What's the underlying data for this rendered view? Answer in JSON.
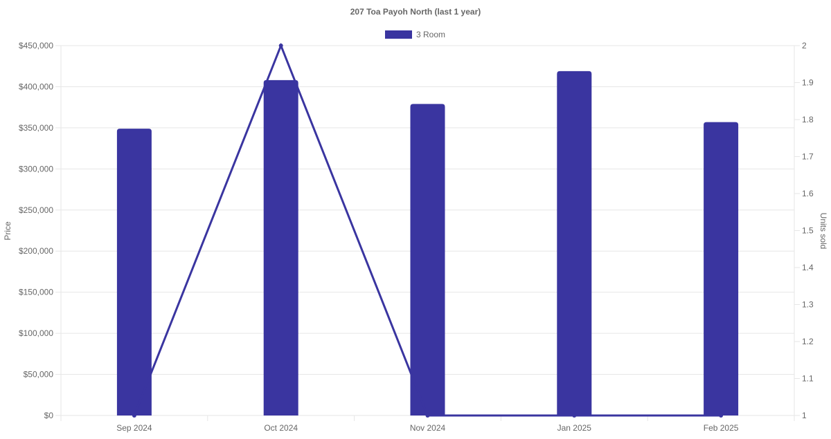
{
  "chart_data": {
    "type": "bar",
    "title": "207 Toa Payoh North (last 1 year)",
    "categories": [
      "Sep 2024",
      "Oct 2024",
      "Nov 2024",
      "Jan 2025",
      "Feb 2025"
    ],
    "series": [
      {
        "name": "3 Room",
        "type": "bar",
        "axis": "left",
        "values": [
          349000,
          408000,
          379000,
          419000,
          357000
        ]
      },
      {
        "name": "",
        "type": "line",
        "axis": "right",
        "values": [
          1,
          2,
          1,
          1,
          1
        ]
      }
    ],
    "ylabel": "Price",
    "y2label": "Units sold",
    "ylim": [
      0,
      450000
    ],
    "y2lim": [
      1,
      2
    ],
    "yticks": [
      "$0",
      "$50,000",
      "$100,000",
      "$150,000",
      "$200,000",
      "$250,000",
      "$300,000",
      "$350,000",
      "$400,000",
      "$450,000"
    ],
    "y2ticks": [
      "1",
      "1.1",
      "1.2",
      "1.3",
      "1.4",
      "1.5",
      "1.6",
      "1.7",
      "1.8",
      "1.9",
      "2"
    ],
    "legend": "top-center",
    "grid": true,
    "colors": {
      "series": "#3a35a0",
      "grid": "#e6e6e6",
      "axis_text": "#666666",
      "title": "#666666"
    }
  }
}
